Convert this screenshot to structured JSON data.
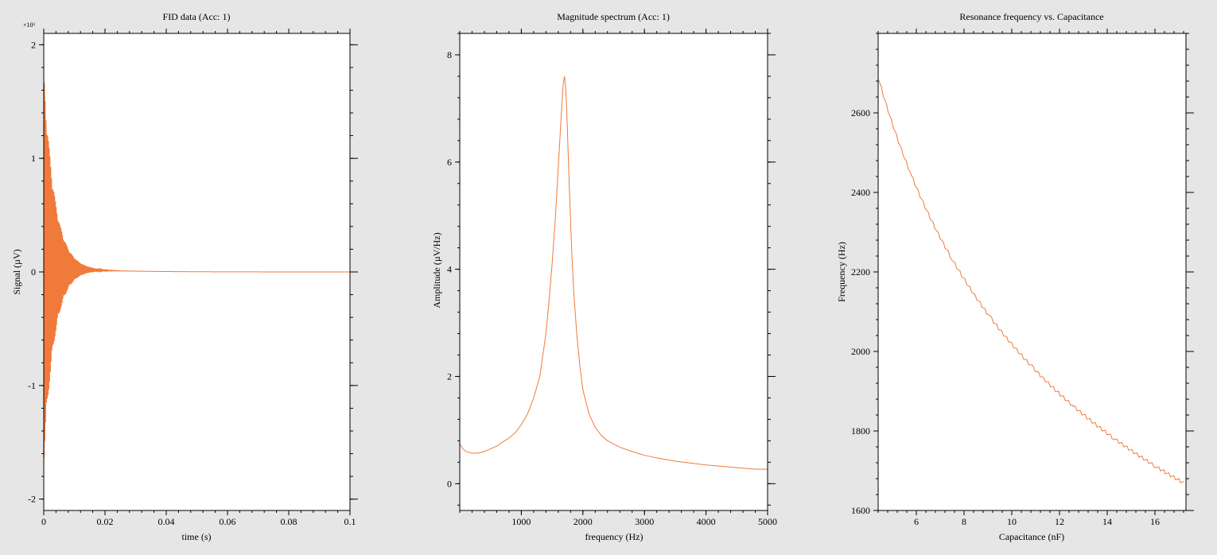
{
  "page": {
    "background": "#e6e6e6",
    "plot_background": "#ffffff",
    "line_color": "#f07a3a"
  },
  "chart_data": [
    {
      "type": "line",
      "title": "FID data (Acc: 1)",
      "xlabel": "time (s)",
      "ylabel": "Signal (µV)",
      "exponent_label": "×10³",
      "xlim": [
        0,
        0.1
      ],
      "ylim": [
        -2.1,
        2.1
      ],
      "x_ticks": [
        0,
        0.02,
        0.04,
        0.06,
        0.08,
        0.1
      ],
      "x_tick_labels": [
        "0",
        "0.02",
        "0.04",
        "0.06",
        "0.08",
        "0.1"
      ],
      "y_ticks": [
        -2,
        -1,
        0,
        1,
        2
      ],
      "y_tick_labels": [
        "-2",
        "-1",
        "0",
        "1",
        "2"
      ],
      "grid": false,
      "series": [
        {
          "kind": "damped_oscillation",
          "amplitude": 1.75,
          "decay_time": 0.0035,
          "frequency_hz": 1700,
          "offset_peak": 0.05,
          "offset_decay": 0.015,
          "x_range": [
            0,
            0.1
          ]
        }
      ]
    },
    {
      "type": "line",
      "title": "Magnitude spectrum (Acc: 1)",
      "xlabel": "frequency (Hz)",
      "ylabel": "Amplitude (µV/Hz)",
      "xlim": [
        0,
        5000
      ],
      "ylim": [
        -0.5,
        8.4
      ],
      "x_ticks": [
        1000,
        2000,
        3000,
        4000,
        5000
      ],
      "x_tick_labels": [
        "1000",
        "2000",
        "3000",
        "4000",
        "5000"
      ],
      "y_ticks": [
        0,
        2,
        4,
        6,
        8
      ],
      "y_tick_labels": [
        "0",
        "2",
        "4",
        "6",
        "8"
      ],
      "grid": false,
      "series": [
        {
          "x": [
            0,
            50,
            100,
            200,
            300,
            400,
            500,
            600,
            700,
            800,
            900,
            1000,
            1100,
            1200,
            1300,
            1400,
            1450,
            1500,
            1550,
            1600,
            1630,
            1660,
            1680,
            1700,
            1720,
            1740,
            1760,
            1790,
            1820,
            1850,
            1900,
            1950,
            2000,
            2100,
            2200,
            2300,
            2400,
            2600,
            2800,
            3000,
            3200,
            3500,
            4000,
            4500,
            4800,
            5000
          ],
          "y": [
            0.75,
            0.65,
            0.6,
            0.57,
            0.57,
            0.6,
            0.65,
            0.7,
            0.78,
            0.85,
            0.95,
            1.1,
            1.3,
            1.6,
            2.0,
            2.8,
            3.4,
            4.1,
            4.9,
            5.9,
            6.5,
            7.1,
            7.45,
            7.6,
            7.4,
            6.9,
            6.2,
            5.2,
            4.3,
            3.6,
            2.8,
            2.2,
            1.75,
            1.3,
            1.05,
            0.9,
            0.8,
            0.68,
            0.6,
            0.53,
            0.48,
            0.42,
            0.35,
            0.3,
            0.27,
            0.27
          ]
        }
      ]
    },
    {
      "type": "line",
      "title": "Resonance frequency vs. Capacitance",
      "xlabel": "Capacitance (nF)",
      "ylabel": "Frequency (Hz)",
      "xlim": [
        4.4,
        17.3
      ],
      "ylim": [
        1600,
        2800
      ],
      "x_ticks": [
        6,
        8,
        10,
        12,
        14,
        16
      ],
      "x_tick_labels": [
        "6",
        "8",
        "10",
        "12",
        "14",
        "16"
      ],
      "y_ticks": [
        1600,
        1800,
        2000,
        2200,
        2400,
        2600
      ],
      "y_tick_labels": [
        "1600",
        "1800",
        "2000",
        "2200",
        "2400",
        "2600"
      ],
      "grid": false,
      "series": [
        {
          "kind": "lc_resonance",
          "f_ref": 2690,
          "c_ref": 4.4,
          "exponent": 0.35,
          "x_range": [
            4.4,
            17.25
          ],
          "step": 0.07
        }
      ]
    }
  ]
}
